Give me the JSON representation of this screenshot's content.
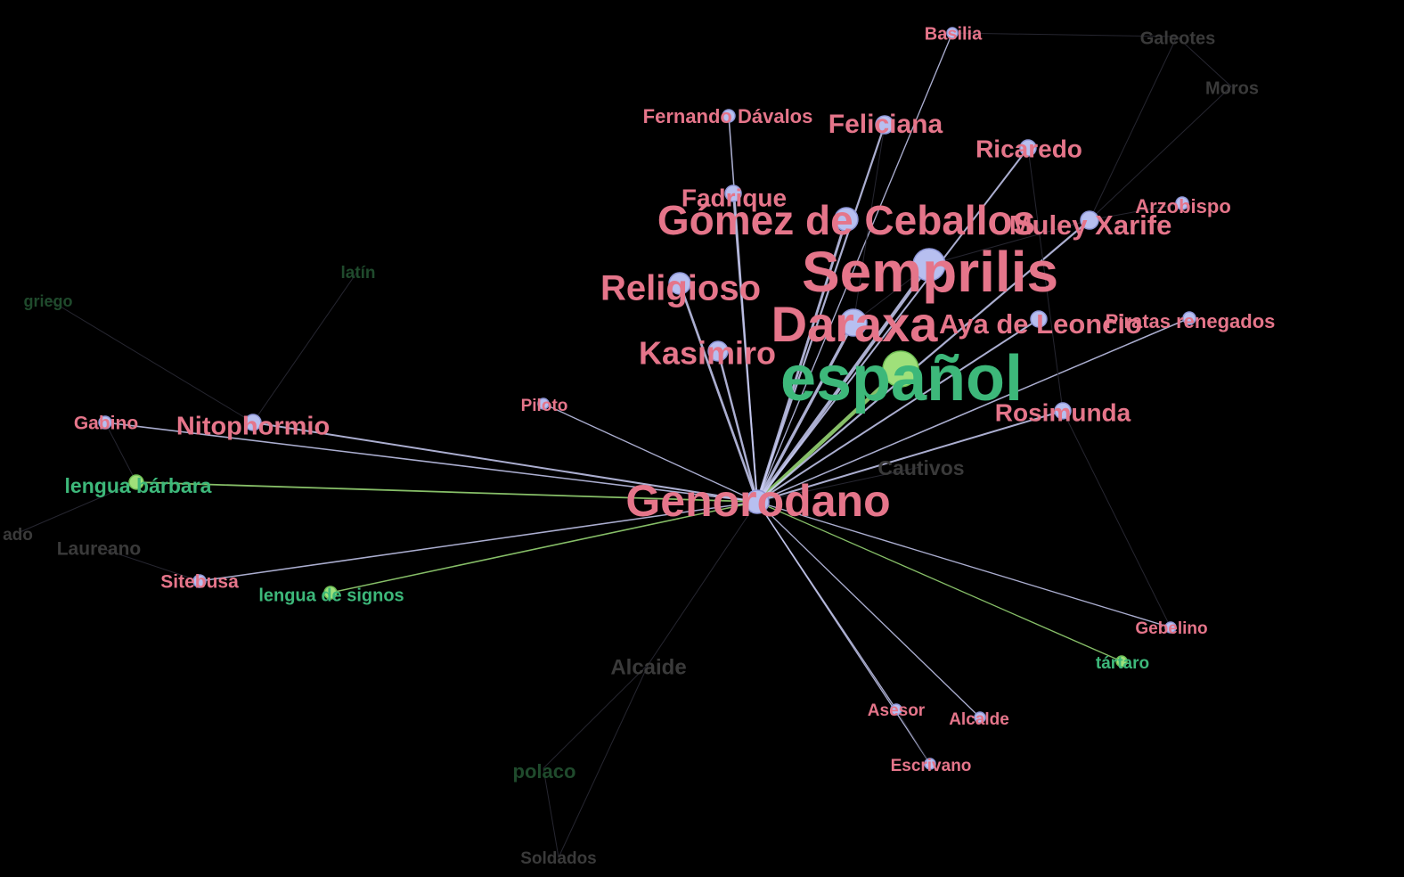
{
  "colors": {
    "background": "#000000",
    "character_label": "#e5758a",
    "language_label": "#3db87a",
    "character_node": "#b7bff0",
    "language_node": "#9fe07a",
    "faded_label": "#3a3a3a",
    "faded_language_label": "#1f4a2c",
    "edge_character": "#c9cdf5",
    "edge_language": "#9fe07a",
    "edge_faded": "#2a2a35"
  },
  "focus_node": "Genorodano",
  "nodes": [
    {
      "id": "Genorodano",
      "type": "character",
      "highlighted": true
    },
    {
      "id": "español",
      "type": "language",
      "highlighted": true
    },
    {
      "id": "Semprilis",
      "type": "character",
      "highlighted": true
    },
    {
      "id": "Daraxa",
      "type": "character",
      "highlighted": true
    },
    {
      "id": "Gómez de Ceballos",
      "type": "character",
      "highlighted": true
    },
    {
      "id": "Religioso",
      "type": "character",
      "highlighted": true
    },
    {
      "id": "Kasimiro",
      "type": "character",
      "highlighted": true
    },
    {
      "id": "Nitophormio",
      "type": "character",
      "highlighted": true
    },
    {
      "id": "Rosimunda",
      "type": "character",
      "highlighted": true
    },
    {
      "id": "Muley Xarife",
      "type": "character",
      "highlighted": true
    },
    {
      "id": "Aya de Leoncio",
      "type": "character",
      "highlighted": true
    },
    {
      "id": "Feliciana",
      "type": "character",
      "highlighted": true
    },
    {
      "id": "Ricaredo",
      "type": "character",
      "highlighted": true
    },
    {
      "id": "Fadrique",
      "type": "character",
      "highlighted": true
    },
    {
      "id": "Fernando Dávalos",
      "type": "character",
      "highlighted": true
    },
    {
      "id": "Basilia",
      "type": "character",
      "highlighted": true
    },
    {
      "id": "Arzobispo",
      "type": "character",
      "highlighted": true
    },
    {
      "id": "Piratas renegados",
      "type": "character",
      "highlighted": true
    },
    {
      "id": "Piloto",
      "type": "character",
      "highlighted": true
    },
    {
      "id": "Gabino",
      "type": "character",
      "highlighted": true
    },
    {
      "id": "lengua bárbara",
      "type": "language",
      "highlighted": true
    },
    {
      "id": "Sitebusa",
      "type": "character",
      "highlighted": true
    },
    {
      "id": "lengua de signos",
      "type": "language",
      "highlighted": true
    },
    {
      "id": "Gebelino",
      "type": "character",
      "highlighted": true
    },
    {
      "id": "tártaro",
      "type": "language",
      "highlighted": true
    },
    {
      "id": "Asesor",
      "type": "character",
      "highlighted": true
    },
    {
      "id": "Alcalde",
      "type": "character",
      "highlighted": true
    },
    {
      "id": "Escrivano",
      "type": "character",
      "highlighted": true
    },
    {
      "id": "Cautivos",
      "type": "character",
      "highlighted": false
    },
    {
      "id": "Alcaide",
      "type": "character",
      "highlighted": false
    },
    {
      "id": "polaco",
      "type": "language",
      "highlighted": false
    },
    {
      "id": "Soldados",
      "type": "character",
      "highlighted": false
    },
    {
      "id": "Laureano",
      "type": "character",
      "highlighted": false
    },
    {
      "id": "ado",
      "type": "character",
      "highlighted": false
    },
    {
      "id": "latín",
      "type": "language",
      "highlighted": false
    },
    {
      "id": "griego",
      "type": "language",
      "highlighted": false
    },
    {
      "id": "Galeotes",
      "type": "character",
      "highlighted": false
    },
    {
      "id": "Moros",
      "type": "character",
      "highlighted": false
    }
  ],
  "edges": [
    {
      "source": "Genorodano",
      "target": "español"
    },
    {
      "source": "Genorodano",
      "target": "Semprilis"
    },
    {
      "source": "Genorodano",
      "target": "Daraxa"
    },
    {
      "source": "Genorodano",
      "target": "Gómez de Ceballos"
    },
    {
      "source": "Genorodano",
      "target": "Religioso"
    },
    {
      "source": "Genorodano",
      "target": "Kasimiro"
    },
    {
      "source": "Genorodano",
      "target": "Nitophormio"
    },
    {
      "source": "Genorodano",
      "target": "Rosimunda"
    },
    {
      "source": "Genorodano",
      "target": "Muley Xarife"
    },
    {
      "source": "Genorodano",
      "target": "Aya de Leoncio"
    },
    {
      "source": "Genorodano",
      "target": "Feliciana"
    },
    {
      "source": "Genorodano",
      "target": "Ricaredo"
    },
    {
      "source": "Genorodano",
      "target": "Fadrique"
    },
    {
      "source": "Genorodano",
      "target": "Fernando Dávalos"
    },
    {
      "source": "Genorodano",
      "target": "Basilia"
    },
    {
      "source": "Genorodano",
      "target": "Piratas renegados"
    },
    {
      "source": "Genorodano",
      "target": "Piloto"
    },
    {
      "source": "Genorodano",
      "target": "Gabino"
    },
    {
      "source": "Genorodano",
      "target": "lengua bárbara"
    },
    {
      "source": "Genorodano",
      "target": "Sitebusa"
    },
    {
      "source": "Genorodano",
      "target": "lengua de signos"
    },
    {
      "source": "Genorodano",
      "target": "Gebelino"
    },
    {
      "source": "Genorodano",
      "target": "tártaro"
    },
    {
      "source": "Genorodano",
      "target": "Asesor"
    },
    {
      "source": "Genorodano",
      "target": "Alcalde"
    },
    {
      "source": "Genorodano",
      "target": "Escrivano"
    },
    {
      "source": "Nitophormio",
      "target": "latín"
    },
    {
      "source": "Nitophormio",
      "target": "griego"
    },
    {
      "source": "Gabino",
      "target": "lengua bárbara"
    },
    {
      "source": "Alcaide",
      "target": "polaco"
    },
    {
      "source": "Alcaide",
      "target": "Soldados"
    },
    {
      "source": "polaco",
      "target": "Soldados"
    },
    {
      "source": "Alcaide",
      "target": "Genorodano"
    },
    {
      "source": "Cautivos",
      "target": "Genorodano"
    },
    {
      "source": "Semprilis",
      "target": "Daraxa"
    },
    {
      "source": "Semprilis",
      "target": "Muley Xarife"
    },
    {
      "source": "Galeotes",
      "target": "Moros"
    },
    {
      "source": "Galeotes",
      "target": "Muley Xarife"
    },
    {
      "source": "Moros",
      "target": "Muley Xarife"
    },
    {
      "source": "Basilia",
      "target": "Galeotes"
    },
    {
      "source": "Laureano",
      "target": "Sitebusa"
    },
    {
      "source": "ado",
      "target": "lengua bárbara"
    },
    {
      "source": "Ricaredo",
      "target": "Rosimunda"
    },
    {
      "source": "Arzobispo",
      "target": "Muley Xarife"
    },
    {
      "source": "Feliciana",
      "target": "Daraxa"
    },
    {
      "source": "Asesor",
      "target": "Escrivano"
    },
    {
      "source": "Gebelino",
      "target": "Rosimunda"
    }
  ]
}
